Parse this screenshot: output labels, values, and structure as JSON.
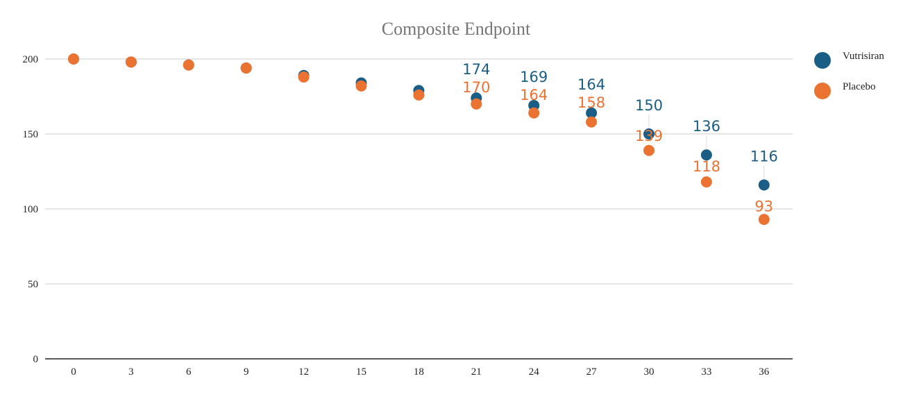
{
  "chart_data": {
    "type": "scatter",
    "title": "Composite Endpoint",
    "xlabel": "",
    "ylabel": "",
    "x": [
      0,
      3,
      6,
      9,
      12,
      15,
      18,
      21,
      24,
      27,
      30,
      33,
      36
    ],
    "x_tick_labels": [
      "0",
      "3",
      "6",
      "9",
      "12",
      "15",
      "18",
      "21",
      "24",
      "27",
      "30",
      "33",
      "36"
    ],
    "ylim": [
      0,
      200
    ],
    "y_tick_labels": [
      "0",
      "50",
      "100",
      "150",
      "200"
    ],
    "grid": true,
    "legend_position": "right",
    "series": [
      {
        "name": "Vutrisiran",
        "color": "#1a5e85",
        "values": [
          200,
          198,
          196,
          194,
          189,
          184,
          179,
          174,
          169,
          164,
          150,
          136,
          116
        ],
        "data_labels": {
          "21": "174",
          "24": "169",
          "27": "164",
          "30": "150",
          "33": "136",
          "36": "116"
        }
      },
      {
        "name": "Placebo",
        "color": "#eb7331",
        "values": [
          200,
          198,
          196,
          194,
          188,
          182,
          176,
          170,
          164,
          158,
          139,
          118,
          93
        ],
        "data_labels": {
          "21": "170",
          "24": "164",
          "27": "158",
          "30": "139",
          "33": "118",
          "36": "93"
        }
      }
    ]
  }
}
